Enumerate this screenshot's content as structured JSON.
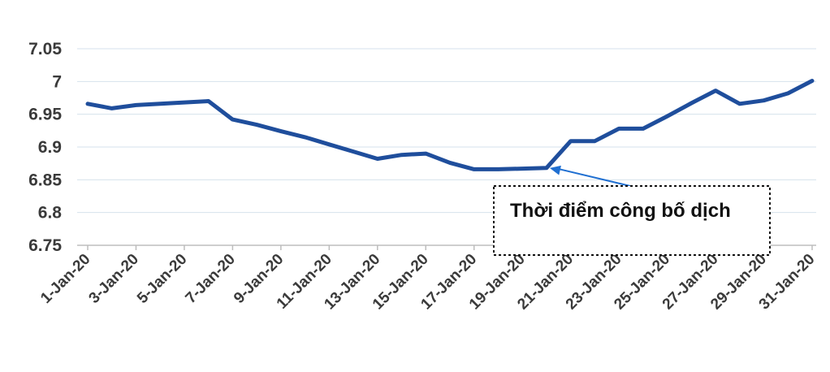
{
  "chart_data": {
    "type": "line",
    "title": "",
    "xlabel": "",
    "ylabel": "",
    "ylim": [
      6.75,
      7.05
    ],
    "yticks": [
      "6.75",
      "6.8",
      "6.85",
      "6.9",
      "6.95",
      "7",
      "7.05"
    ],
    "grid": true,
    "x_tick_labels": [
      "1-Jan-20",
      "3-Jan-20",
      "5-Jan-20",
      "7-Jan-20",
      "9-Jan-20",
      "11-Jan-20",
      "13-Jan-20",
      "15-Jan-20",
      "17-Jan-20",
      "19-Jan-20",
      "21-Jan-20",
      "23-Jan-20",
      "25-Jan-20",
      "27-Jan-20",
      "29-Jan-20",
      "31-Jan-20"
    ],
    "series": [
      {
        "name": "",
        "color": "#1f4e9c",
        "points": [
          [
            0,
            6.966
          ],
          [
            1,
            6.959
          ],
          [
            2,
            6.964
          ],
          [
            3,
            6.966
          ],
          [
            4,
            6.968
          ],
          [
            5,
            6.97
          ],
          [
            6,
            6.942
          ],
          [
            7,
            6.934
          ],
          [
            8,
            6.924
          ],
          [
            9,
            6.915
          ],
          [
            10,
            6.904
          ],
          [
            11,
            6.893
          ],
          [
            12,
            6.882
          ],
          [
            13,
            6.888
          ],
          [
            14,
            6.89
          ],
          [
            15,
            6.876
          ],
          [
            16,
            6.866
          ],
          [
            17,
            6.866
          ],
          [
            18,
            6.867
          ],
          [
            19,
            6.868
          ],
          [
            20,
            6.909
          ],
          [
            21,
            6.909
          ],
          [
            22,
            6.928
          ],
          [
            23,
            6.928
          ],
          [
            24,
            6.947
          ],
          [
            25,
            6.967
          ],
          [
            26,
            6.986
          ],
          [
            27,
            6.966
          ],
          [
            28,
            6.971
          ],
          [
            29,
            6.982
          ],
          [
            30,
            7.001
          ]
        ]
      }
    ],
    "annotation": {
      "text": "Thời điểm công bố dịch",
      "target_day_index": 19,
      "arrow_color": "#1f6fd1"
    }
  }
}
